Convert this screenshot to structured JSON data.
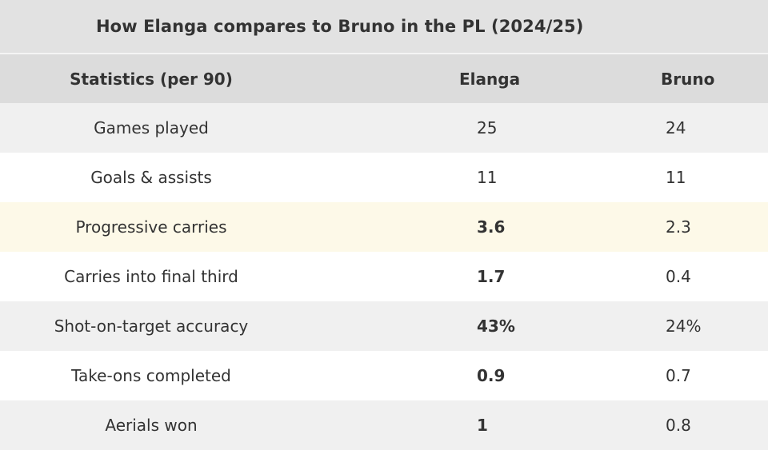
{
  "chart_data": {
    "type": "table",
    "title": "How Elanga compares to Bruno in the PL (2024/25)",
    "columns": [
      "Statistics (per 90)",
      "Elanga",
      "Bruno"
    ],
    "rows": [
      {
        "stat": "Games played",
        "elanga": "25",
        "bruno": "24",
        "elanga_bold": false,
        "shade": "shade"
      },
      {
        "stat": "Goals & assists",
        "elanga": "11",
        "bruno": "11",
        "elanga_bold": false,
        "shade": "white"
      },
      {
        "stat": "Progressive carries",
        "elanga": "3.6",
        "bruno": "2.3",
        "elanga_bold": true,
        "shade": "hl"
      },
      {
        "stat": "Carries into final third",
        "elanga": "1.7",
        "bruno": "0.4",
        "elanga_bold": true,
        "shade": "white"
      },
      {
        "stat": "Shot-on-target accuracy",
        "elanga": "43%",
        "bruno": "24%",
        "elanga_bold": true,
        "shade": "shade"
      },
      {
        "stat": "Take-ons completed",
        "elanga": "0.9",
        "bruno": "0.7",
        "elanga_bold": true,
        "shade": "white"
      },
      {
        "stat": "Aerials won",
        "elanga": "1",
        "bruno": "0.8",
        "elanga_bold": true,
        "shade": "shade"
      }
    ]
  },
  "colors": {
    "header_bg": "#dcdcdc",
    "title_bg": "#e2e2e2",
    "row_shade": "#f0f0f0",
    "row_highlight": "#fdf9e8",
    "text": "#333333"
  }
}
